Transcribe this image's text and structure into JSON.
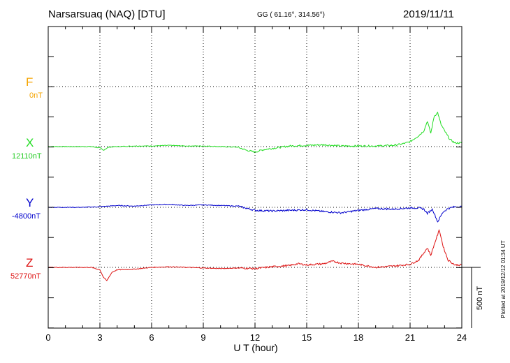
{
  "header": {
    "station": "Narsarsuaq (NAQ)  [DTU]",
    "coords": "GG ( 61.16°, 314.56°)",
    "date": "2019/11/11"
  },
  "footer": {
    "plotted": "Plotted at 2019/12/12 01:34 UT"
  },
  "scale_bar": {
    "label": "500 nT"
  },
  "components": [
    {
      "letter": "F",
      "baseline": "0nT",
      "color": "#f5a400"
    },
    {
      "letter": "X",
      "baseline": "12110nT",
      "color": "#22dd22"
    },
    {
      "letter": "Y",
      "baseline": "-4800nT",
      "color": "#0000cc"
    },
    {
      "letter": "Z",
      "baseline": "52770nT",
      "color": "#dd1111"
    }
  ],
  "chart_data": {
    "type": "line",
    "xlabel": "U T (hour)",
    "xlim": [
      0,
      24
    ],
    "x_ticks": [
      "0",
      "3",
      "6",
      "9",
      "12",
      "15",
      "18",
      "21",
      "24"
    ],
    "ylabel": "",
    "grid": true,
    "units": "nT",
    "series": [
      {
        "name": "X",
        "color": "#22dd22",
        "x": [
          0,
          2.5,
          3,
          3.2,
          3.5,
          4,
          5,
          6,
          7,
          8,
          9,
          10,
          11,
          11.5,
          12,
          12.5,
          13,
          14,
          15,
          16,
          17,
          18,
          19,
          20,
          20.5,
          21,
          21.5,
          21.8,
          22,
          22.2,
          22.4,
          22.6,
          22.8,
          23,
          23.3,
          23.6,
          24
        ],
        "values": [
          0,
          0,
          -10,
          -30,
          -5,
          0,
          5,
          5,
          10,
          5,
          5,
          0,
          -5,
          -30,
          -45,
          -25,
          -15,
          5,
          10,
          15,
          5,
          5,
          5,
          10,
          20,
          40,
          90,
          130,
          210,
          110,
          250,
          280,
          180,
          130,
          60,
          30,
          30
        ]
      },
      {
        "name": "Y",
        "color": "#0000cc",
        "x": [
          0,
          2,
          3,
          4,
          5,
          6,
          7,
          8,
          9,
          10,
          11,
          12,
          13,
          14,
          15,
          16,
          17,
          18,
          19,
          20,
          21,
          21.5,
          21.8,
          22,
          22.3,
          22.6,
          22.9,
          23.2,
          23.6,
          24
        ],
        "values": [
          0,
          0,
          5,
          15,
          10,
          20,
          25,
          15,
          20,
          15,
          10,
          -25,
          -30,
          -25,
          -20,
          -35,
          -45,
          -25,
          -10,
          -15,
          -5,
          -5,
          -15,
          -50,
          -15,
          -120,
          -40,
          -10,
          5,
          5
        ]
      },
      {
        "name": "Z",
        "color": "#dd1111",
        "x": [
          0,
          2.5,
          3,
          3.2,
          3.4,
          3.7,
          4,
          5,
          6,
          7,
          8,
          9,
          10,
          11,
          12,
          13,
          14,
          14.5,
          15,
          16,
          16.5,
          17,
          18,
          19,
          20,
          21,
          21.5,
          21.8,
          22,
          22.2,
          22.5,
          22.7,
          22.9,
          23.2,
          23.6,
          24
        ],
        "values": [
          0,
          0,
          -20,
          -80,
          -110,
          -40,
          -20,
          -15,
          0,
          5,
          0,
          -5,
          -10,
          -5,
          -10,
          5,
          15,
          30,
          20,
          30,
          50,
          35,
          25,
          0,
          10,
          25,
          60,
          120,
          160,
          100,
          230,
          310,
          180,
          60,
          20,
          20
        ]
      }
    ]
  }
}
